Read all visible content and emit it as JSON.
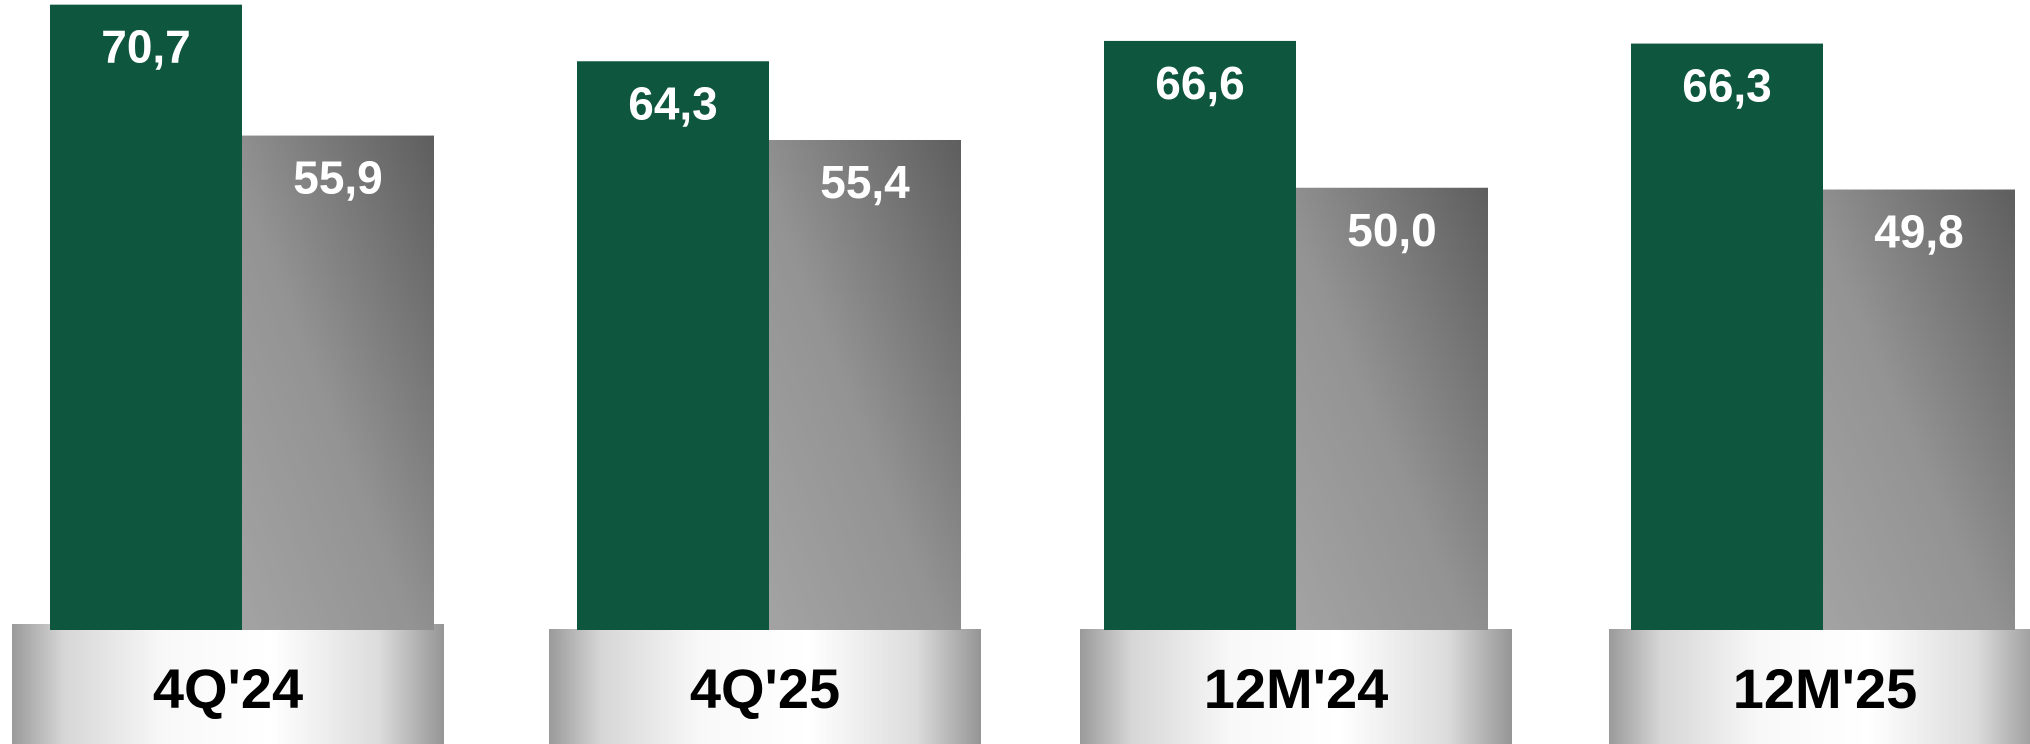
{
  "chart_data": {
    "type": "bar",
    "categories": [
      "4Q'24",
      "4Q'25",
      "12M'24",
      "12M'25"
    ],
    "series": [
      {
        "values": [
          70.7,
          64.3,
          66.6,
          66.3
        ]
      },
      {
        "values": [
          55.9,
          55.4,
          50.0,
          49.8
        ]
      }
    ],
    "data_labels": [
      [
        "70,7",
        "64,3",
        "66,6",
        "66,3"
      ],
      [
        "55,9",
        "55,4",
        "50,0",
        "49,8"
      ]
    ],
    "title": "",
    "xlabel": "",
    "ylabel": "",
    "colors": {
      "series_1": "#0e563e",
      "series_2_top": "#5e5e5e",
      "series_2_bottom": "#a3a3a3"
    },
    "grid": false,
    "legend": "none"
  }
}
